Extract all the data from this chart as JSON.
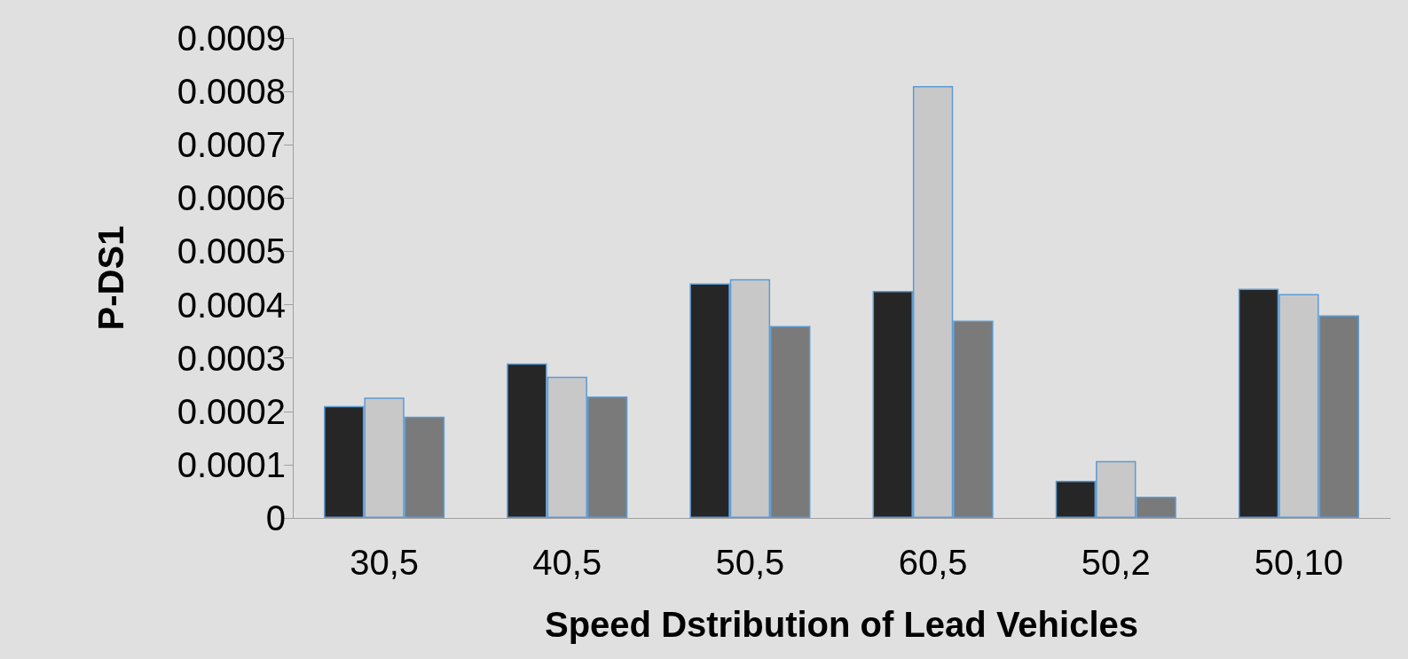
{
  "chart_data": {
    "type": "bar",
    "xlabel": "Speed Dstribution of Lead Vehicles",
    "ylabel": "P-DS1",
    "categories": [
      "30,5",
      "40,5",
      "50,5",
      "60,5",
      "50,2",
      "50,10"
    ],
    "series": [
      {
        "color": "#262626",
        "values": [
          0.00021,
          0.00029,
          0.00044,
          0.000426,
          7e-05,
          0.00043
        ]
      },
      {
        "color": "#c8c8c8",
        "values": [
          0.000226,
          0.000265,
          0.000448,
          0.00081,
          0.000107,
          0.00042
        ]
      },
      {
        "color": "#7a7a7a",
        "values": [
          0.00019,
          0.000228,
          0.00036,
          0.00037,
          4e-05,
          0.00038
        ]
      }
    ],
    "ylim": [
      0,
      0.0009
    ],
    "yticks": [
      0,
      0.0001,
      0.0002,
      0.0003,
      0.0004,
      0.0005,
      0.0006,
      0.0007,
      0.0008,
      0.0009
    ]
  }
}
